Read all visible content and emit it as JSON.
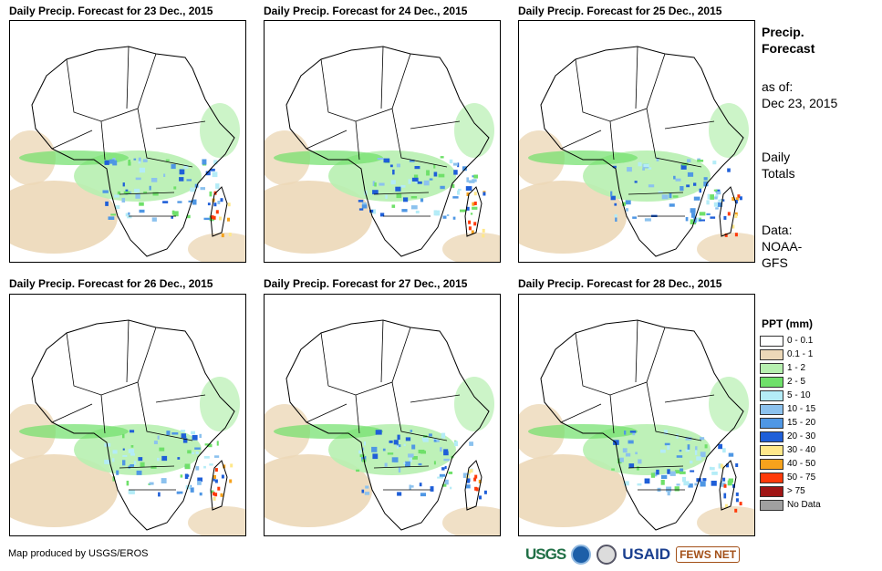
{
  "panels": [
    {
      "title": "Daily Precip. Forecast for 23 Dec., 2015"
    },
    {
      "title": "Daily Precip. Forecast for 24 Dec., 2015"
    },
    {
      "title": "Daily Precip. Forecast for 25 Dec., 2015"
    },
    {
      "title": "Daily Precip. Forecast for 26 Dec., 2015"
    },
    {
      "title": "Daily Precip. Forecast for 27 Dec., 2015"
    },
    {
      "title": "Daily Precip. Forecast for 28 Dec., 2015"
    }
  ],
  "sidebar": {
    "heading_line1": "Precip.",
    "heading_line2": "Forecast",
    "asof_line1": "as of:",
    "asof_line2": "Dec 23, 2015",
    "totals_line1": "Daily",
    "totals_line2": "Totals",
    "data_line1": "Data:",
    "data_line2": "NOAA-",
    "data_line3": "GFS"
  },
  "legend": {
    "title": "PPT (mm)",
    "items": [
      {
        "label": "0 - 0.1",
        "color": "#ffffff"
      },
      {
        "label": "0.1 - 1",
        "color": "#ecd8b8"
      },
      {
        "label": "1 - 2",
        "color": "#b7f0b0"
      },
      {
        "label": "2 - 5",
        "color": "#6fe06a"
      },
      {
        "label": "5 - 10",
        "color": "#b4ecf7"
      },
      {
        "label": "10 - 15",
        "color": "#8cc2ee"
      },
      {
        "label": "15 - 20",
        "color": "#4f97e4"
      },
      {
        "label": "20 - 30",
        "color": "#1f5fd8"
      },
      {
        "label": "30 - 40",
        "color": "#ffe88a"
      },
      {
        "label": "40 - 50",
        "color": "#f6a21c"
      },
      {
        "label": "50 - 75",
        "color": "#ff3a0a"
      },
      {
        "label": "> 75",
        "color": "#a01515"
      },
      {
        "label": "No Data",
        "color": "#a0a0a0"
      }
    ]
  },
  "credit": "Map produced by USGS/EROS",
  "logos": {
    "usgs": "USGS",
    "usaid": "USAID",
    "fews": "FEWS NET"
  }
}
